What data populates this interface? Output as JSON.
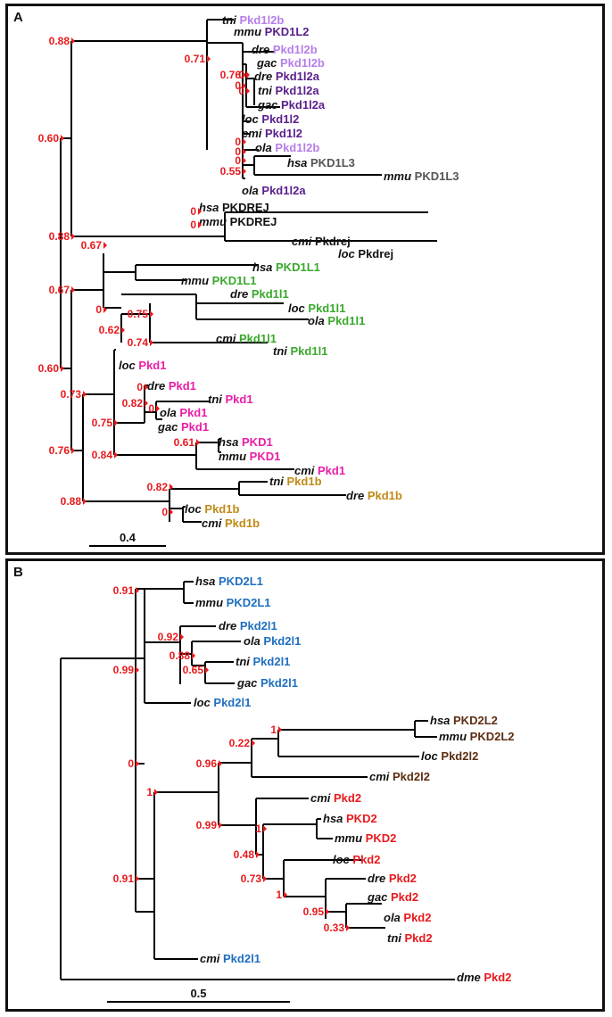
{
  "panel_a": {
    "label": "A",
    "scale_label": "0.4",
    "supports": [
      {
        "id": "a_pkd1l2b_l2",
        "value": "0.88"
      },
      {
        "id": "a_l2_core",
        "value": "0.71"
      },
      {
        "id": "a_dre_gac_tni",
        "value": "0.76"
      },
      {
        "id": "a_drel2b_inner",
        "value": "0"
      },
      {
        "id": "a_n1",
        "value": "0"
      },
      {
        "id": "a_n2",
        "value": "0"
      },
      {
        "id": "a_n3",
        "value": "0"
      },
      {
        "id": "a_n4",
        "value": "0"
      },
      {
        "id": "a_n5",
        "value": "0"
      },
      {
        "id": "a_l3",
        "value": "0.55"
      },
      {
        "id": "a_rej1",
        "value": "0"
      },
      {
        "id": "a_rej2",
        "value": "0"
      },
      {
        "id": "a_rejclade",
        "value": "0.88"
      },
      {
        "id": "a_l2_rej",
        "value": "0.60"
      },
      {
        "id": "a_l1_mam",
        "value": "0.67"
      },
      {
        "id": "a_l1_all",
        "value": "0.67"
      },
      {
        "id": "a_l1_fish",
        "value": "0"
      },
      {
        "id": "a_l1_loc",
        "value": "0.75"
      },
      {
        "id": "a_l1_cmi",
        "value": "0.62"
      },
      {
        "id": "a_l1_cmitni",
        "value": "0.74"
      },
      {
        "id": "a_pkd1_dre",
        "value": "0"
      },
      {
        "id": "a_pkd1_olagac",
        "value": "0"
      },
      {
        "id": "a_pkd1_fish",
        "value": "0.82"
      },
      {
        "id": "a_pkd1_all",
        "value": "0.73"
      },
      {
        "id": "a_pkd1_mid",
        "value": "0.75"
      },
      {
        "id": "a_pkd1_mam",
        "value": "0.61"
      },
      {
        "id": "a_pkd1_tet",
        "value": "0.84"
      },
      {
        "id": "a_root2",
        "value": "0.60"
      },
      {
        "id": "a_pkd1b_fish",
        "value": "0.82"
      },
      {
        "id": "a_pkd1b_loccmi",
        "value": "0"
      },
      {
        "id": "a_pkd1b_clade",
        "value": "0.88"
      },
      {
        "id": "a_pkd1_pkd1b",
        "value": "0.76"
      }
    ],
    "tips": [
      {
        "sp": "tni",
        "gene": "Pkd1l2b",
        "color": "#b57ee8"
      },
      {
        "sp": "mmu",
        "gene": "PKD1L2",
        "color": "#5a1f8c"
      },
      {
        "sp": "dre",
        "gene": "Pkd1l2b",
        "color": "#b57ee8"
      },
      {
        "sp": "gac",
        "gene": "Pkd1l2b",
        "color": "#b57ee8"
      },
      {
        "sp": "dre",
        "gene": "Pkd1l2a",
        "color": "#5a1f8c"
      },
      {
        "sp": "tni",
        "gene": "Pkd1l2a",
        "color": "#5a1f8c"
      },
      {
        "sp": "gac",
        "gene": "Pkd1l2a",
        "color": "#5a1f8c"
      },
      {
        "sp": "loc",
        "gene": "Pkd1l2",
        "color": "#5a1f8c"
      },
      {
        "sp": "cmi",
        "gene": "Pkd1l2",
        "color": "#5a1f8c"
      },
      {
        "sp": "ola",
        "gene": "Pkd1l2b",
        "color": "#b57ee8"
      },
      {
        "sp": "hsa",
        "gene": "PKD1L3",
        "color": "#555555"
      },
      {
        "sp": "mmu",
        "gene": "PKD1L3",
        "color": "#555555"
      },
      {
        "sp": "ola",
        "gene": "Pkd1l2a",
        "color": "#5a1f8c"
      },
      {
        "sp": "hsa",
        "gene": "PKDREJ",
        "color": "#111111"
      },
      {
        "sp": "mmu",
        "gene": "PKDREJ",
        "color": "#111111"
      },
      {
        "sp": "cmi",
        "gene": "Pkdrej",
        "color": "#111111"
      },
      {
        "sp": "loc",
        "gene": "Pkdrej",
        "color": "#111111"
      },
      {
        "sp": "hsa",
        "gene": "PKD1L1",
        "color": "#3aa82c"
      },
      {
        "sp": "mmu",
        "gene": "PKD1L1",
        "color": "#3aa82c"
      },
      {
        "sp": "dre",
        "gene": "Pkd1l1",
        "color": "#3aa82c"
      },
      {
        "sp": "loc",
        "gene": "Pkd1l1",
        "color": "#3aa82c"
      },
      {
        "sp": "ola",
        "gene": "Pkd1l1",
        "color": "#3aa82c"
      },
      {
        "sp": "cmi",
        "gene": "Pkd1l1",
        "color": "#3aa82c"
      },
      {
        "sp": "tni",
        "gene": "Pkd1l1",
        "color": "#3aa82c"
      },
      {
        "sp": "loc",
        "gene": "Pkd1",
        "color": "#e91ea6"
      },
      {
        "sp": "dre",
        "gene": "Pkd1",
        "color": "#e91ea6"
      },
      {
        "sp": "tni",
        "gene": "Pkd1",
        "color": "#e91ea6"
      },
      {
        "sp": "ola",
        "gene": "Pkd1",
        "color": "#e91ea6"
      },
      {
        "sp": "gac",
        "gene": "Pkd1",
        "color": "#e91ea6"
      },
      {
        "sp": "hsa",
        "gene": "PKD1",
        "color": "#e91ea6"
      },
      {
        "sp": "mmu",
        "gene": "PKD1",
        "color": "#e91ea6"
      },
      {
        "sp": "cmi",
        "gene": "Pkd1",
        "color": "#e91ea6"
      },
      {
        "sp": "tni",
        "gene": "Pkd1b",
        "color": "#c08a17"
      },
      {
        "sp": "dre",
        "gene": "Pkd1b",
        "color": "#c08a17"
      },
      {
        "sp": "loc",
        "gene": "Pkd1b",
        "color": "#c08a17"
      },
      {
        "sp": "cmi",
        "gene": "Pkd1b",
        "color": "#c08a17"
      }
    ]
  },
  "panel_b": {
    "label": "B",
    "scale_label": "0.5",
    "supports": [
      {
        "id": "b_l1",
        "value": "0.91"
      },
      {
        "id": "b_l1fish",
        "value": "0.92"
      },
      {
        "id": "b_l1_o",
        "value": "0.88"
      },
      {
        "id": "b_l1_tg",
        "value": "0.65"
      },
      {
        "id": "b_l1all",
        "value": "0.99"
      },
      {
        "id": "b_l2in",
        "value": "1"
      },
      {
        "id": "b_l2mam",
        "value": "0.22"
      },
      {
        "id": "b_root_inner",
        "value": "0"
      },
      {
        "id": "b_l2",
        "value": "0.96"
      },
      {
        "id": "b_l2pkd2",
        "value": "1"
      },
      {
        "id": "b_pkd2",
        "value": "0.99"
      },
      {
        "id": "b_pkd2mam",
        "value": "1"
      },
      {
        "id": "b_pkd2loc",
        "value": "0.48"
      },
      {
        "id": "b_pkd2fish",
        "value": "0.73"
      },
      {
        "id": "b_pkd2tel",
        "value": "1"
      },
      {
        "id": "b_all",
        "value": "0.91"
      },
      {
        "id": "b_gac",
        "value": "0.95"
      },
      {
        "id": "b_olatni",
        "value": "0.33"
      }
    ],
    "tips": [
      {
        "sp": "hsa",
        "gene": "PKD2L1",
        "color": "#1f6fc0"
      },
      {
        "sp": "mmu",
        "gene": "PKD2L1",
        "color": "#1f6fc0"
      },
      {
        "sp": "dre",
        "gene": "Pkd2l1",
        "color": "#1f6fc0"
      },
      {
        "sp": "ola",
        "gene": "Pkd2l1",
        "color": "#1f6fc0"
      },
      {
        "sp": "tni",
        "gene": "Pkd2l1",
        "color": "#1f6fc0"
      },
      {
        "sp": "gac",
        "gene": "Pkd2l1",
        "color": "#1f6fc0"
      },
      {
        "sp": "loc",
        "gene": "Pkd2l1",
        "color": "#1f6fc0"
      },
      {
        "sp": "hsa",
        "gene": "PKD2L2",
        "color": "#5c2e12"
      },
      {
        "sp": "mmu",
        "gene": "PKD2L2",
        "color": "#5c2e12"
      },
      {
        "sp": "loc",
        "gene": "Pkd2l2",
        "color": "#5c2e12"
      },
      {
        "sp": "cmi",
        "gene": "Pkd2l2",
        "color": "#5c2e12"
      },
      {
        "sp": "cmi",
        "gene": "Pkd2",
        "color": "#e8191c"
      },
      {
        "sp": "hsa",
        "gene": "PKD2",
        "color": "#e8191c"
      },
      {
        "sp": "mmu",
        "gene": "PKD2",
        "color": "#e8191c"
      },
      {
        "sp": "loc",
        "gene": "Pkd2",
        "color": "#e8191c"
      },
      {
        "sp": "dre",
        "gene": "Pkd2",
        "color": "#e8191c"
      },
      {
        "sp": "gac",
        "gene": "Pkd2",
        "color": "#e8191c"
      },
      {
        "sp": "ola",
        "gene": "Pkd2",
        "color": "#e8191c"
      },
      {
        "sp": "tni",
        "gene": "Pkd2",
        "color": "#e8191c"
      },
      {
        "sp": "cmi",
        "gene": "Pkd2l1",
        "color": "#1f6fc0"
      },
      {
        "sp": "dme",
        "gene": "Pkd2",
        "color": "#e8191c"
      }
    ]
  }
}
